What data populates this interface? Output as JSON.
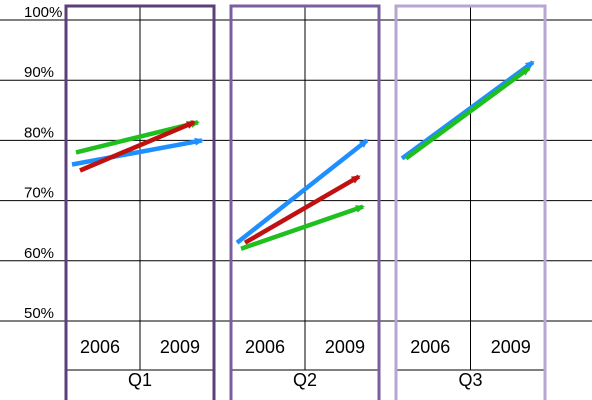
{
  "chart_data": {
    "type": "line",
    "title": "",
    "xlabel": "",
    "ylabel": "",
    "ylim": [
      45,
      100
    ],
    "y_ticks": [
      "100%",
      "90%",
      "80%",
      "70%",
      "60%",
      "50%"
    ],
    "y_tick_values": [
      100,
      90,
      80,
      70,
      60,
      50
    ],
    "grid": true,
    "legend": "none",
    "years": [
      "2006",
      "2009"
    ],
    "panels": [
      {
        "label": "Q1",
        "border_color": "#5b3f7a",
        "series": [
          {
            "color": "#1f8fff",
            "values": [
              76,
              80
            ]
          },
          {
            "color": "#1fbf1f",
            "values": [
              78,
              83
            ]
          },
          {
            "color": "#c01010",
            "values": [
              75,
              83
            ]
          }
        ]
      },
      {
        "label": "Q2",
        "border_color": "#7a5ea0",
        "series": [
          {
            "color": "#1f8fff",
            "values": [
              63,
              80
            ]
          },
          {
            "color": "#1fbf1f",
            "values": [
              62,
              69
            ]
          },
          {
            "color": "#c01010",
            "values": [
              63,
              74
            ]
          }
        ]
      },
      {
        "label": "Q3",
        "border_color": "#b8a6d2",
        "series": [
          {
            "color": "#1f8fff",
            "values": [
              77,
              93
            ]
          },
          {
            "color": "#1fbf1f",
            "values": [
              77,
              92
            ]
          }
        ]
      }
    ]
  }
}
